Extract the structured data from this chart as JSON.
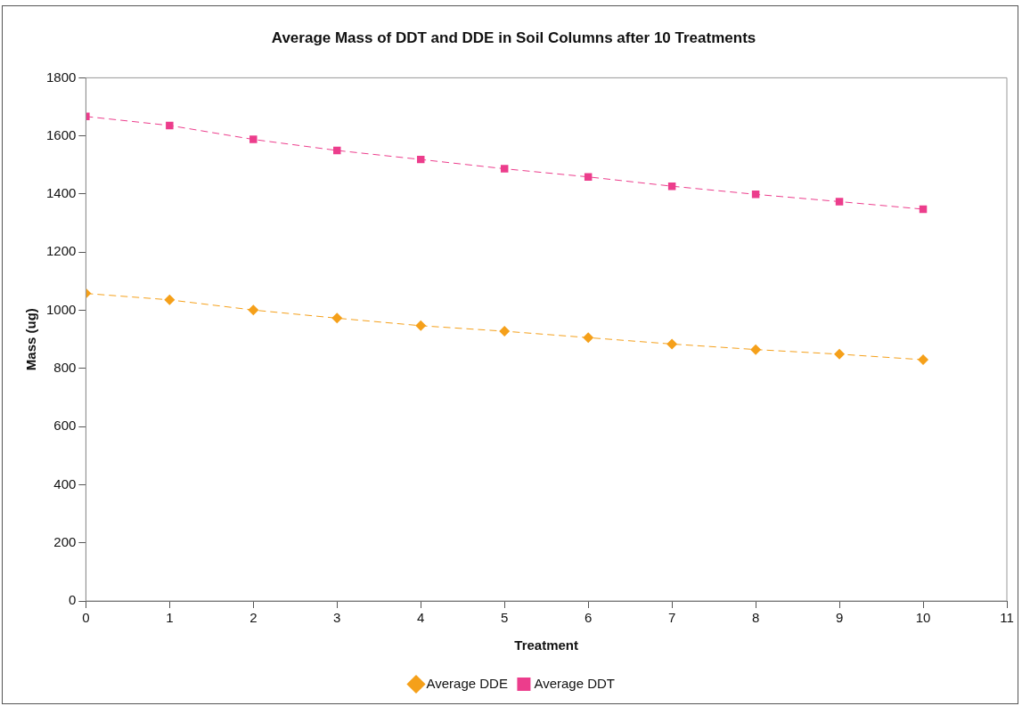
{
  "chart_data": {
    "type": "line",
    "title": "Average Mass of DDT and DDE in Soil Columns after 10 Treatments",
    "xlabel": "Treatment",
    "ylabel": "Mass (ug)",
    "x": [
      0,
      1,
      2,
      3,
      4,
      5,
      6,
      7,
      8,
      9,
      10
    ],
    "series": [
      {
        "name": "Average DDE",
        "color": "#f5a01a",
        "marker": "diamond",
        "values": [
          1058,
          1036,
          1001,
          973,
          947,
          928,
          906,
          884,
          865,
          849,
          830
        ]
      },
      {
        "name": "Average DDT",
        "color": "#ec3d8c",
        "marker": "square",
        "values": [
          1667,
          1636,
          1588,
          1550,
          1519,
          1487,
          1459,
          1427,
          1399,
          1374,
          1348
        ]
      }
    ],
    "line_style": "dashed",
    "xlim": [
      0,
      11
    ],
    "xticks": [
      0,
      1,
      2,
      3,
      4,
      5,
      6,
      7,
      8,
      9,
      10,
      11
    ],
    "ylim": [
      0,
      1800
    ],
    "yticks": [
      0,
      200,
      400,
      600,
      800,
      1000,
      1200,
      1400,
      1600,
      1800
    ],
    "grid": false,
    "legend": "bottom"
  }
}
